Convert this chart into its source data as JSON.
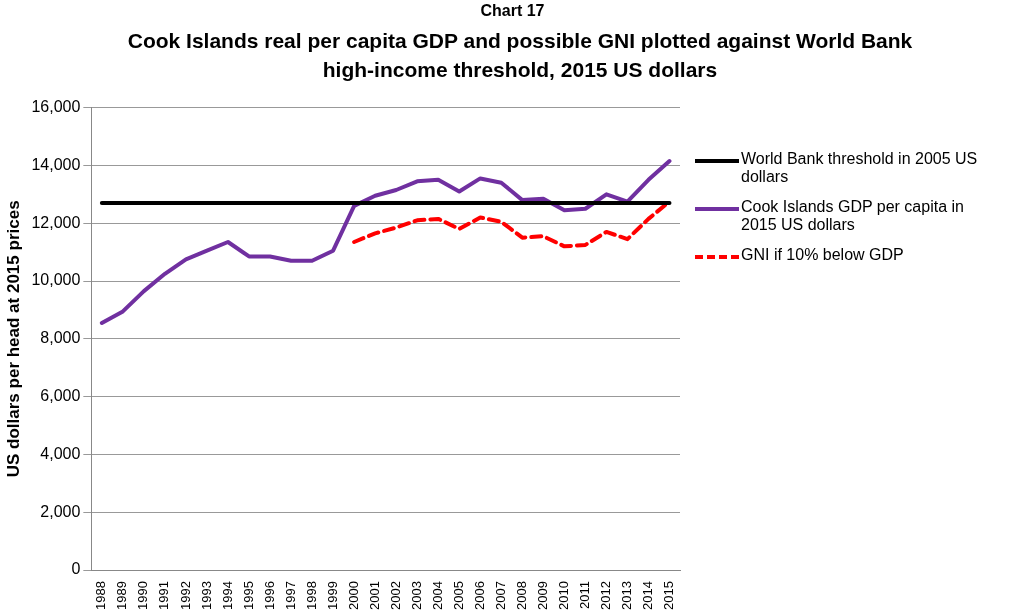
{
  "chart_data": {
    "type": "line",
    "title": "Cook Islands real per capita GDP and possible GNI plotted against World Bank high-income threshold, 2015 US dollars",
    "ylabel": "US dollars per head at 2015 prices",
    "annotations": [
      "Chart 17"
    ],
    "categories": [
      "1988",
      "1989",
      "1990",
      "1991",
      "1992",
      "1993",
      "1994",
      "1995",
      "1996",
      "1997",
      "1998",
      "1999",
      "2000",
      "2001",
      "2002",
      "2003",
      "2004",
      "2005",
      "2006",
      "2007",
      "2008",
      "2009",
      "2010",
      "2011",
      "2012",
      "2013",
      "2014",
      "2015"
    ],
    "series": [
      {
        "name": "World Bank threshold in 2005 US dollars",
        "color": "#000000",
        "line_style": "solid",
        "values": [
          12700,
          12700,
          12700,
          12700,
          12700,
          12700,
          12700,
          12700,
          12700,
          12700,
          12700,
          12700,
          12700,
          12700,
          12700,
          12700,
          12700,
          12700,
          12700,
          12700,
          12700,
          12700,
          12700,
          12700,
          12700,
          12700,
          12700,
          12700
        ]
      },
      {
        "name": "Cook Islands GDP per capita in 2015 US dollars",
        "color": "#7030a0",
        "line_style": "solid",
        "values": [
          8550,
          8950,
          9650,
          10250,
          10750,
          11050,
          11350,
          10850,
          10850,
          10700,
          10700,
          11050,
          12600,
          12950,
          13150,
          13450,
          13500,
          13100,
          13550,
          13400,
          12800,
          12850,
          12450,
          12500,
          13000,
          12750,
          13500,
          14150
        ]
      },
      {
        "name": "GNI if 10% below GDP",
        "color": "#ff0000",
        "line_style": "dashed",
        "values": [
          null,
          null,
          null,
          null,
          null,
          null,
          null,
          null,
          null,
          null,
          null,
          null,
          11350,
          11650,
          11850,
          12100,
          12150,
          11800,
          12200,
          12050,
          11500,
          11550,
          11200,
          11250,
          11700,
          11450,
          12150,
          12750
        ]
      }
    ],
    "ylim": [
      0,
      16000
    ],
    "yticks": [
      0,
      {
        "value": 2000,
        "label": "2,000"
      },
      {
        "value": 4000,
        "label": "4,000"
      },
      {
        "value": 6000,
        "label": "6,000"
      },
      {
        "value": 8000,
        "label": "8,000"
      },
      {
        "value": 10000,
        "label": "10,000"
      },
      {
        "value": 12000,
        "label": "12,000"
      },
      {
        "value": 14000,
        "label": "14,000"
      },
      {
        "value": 16000,
        "label": "16,000"
      }
    ],
    "grid": "y",
    "legend": "right",
    "marker": "none"
  }
}
